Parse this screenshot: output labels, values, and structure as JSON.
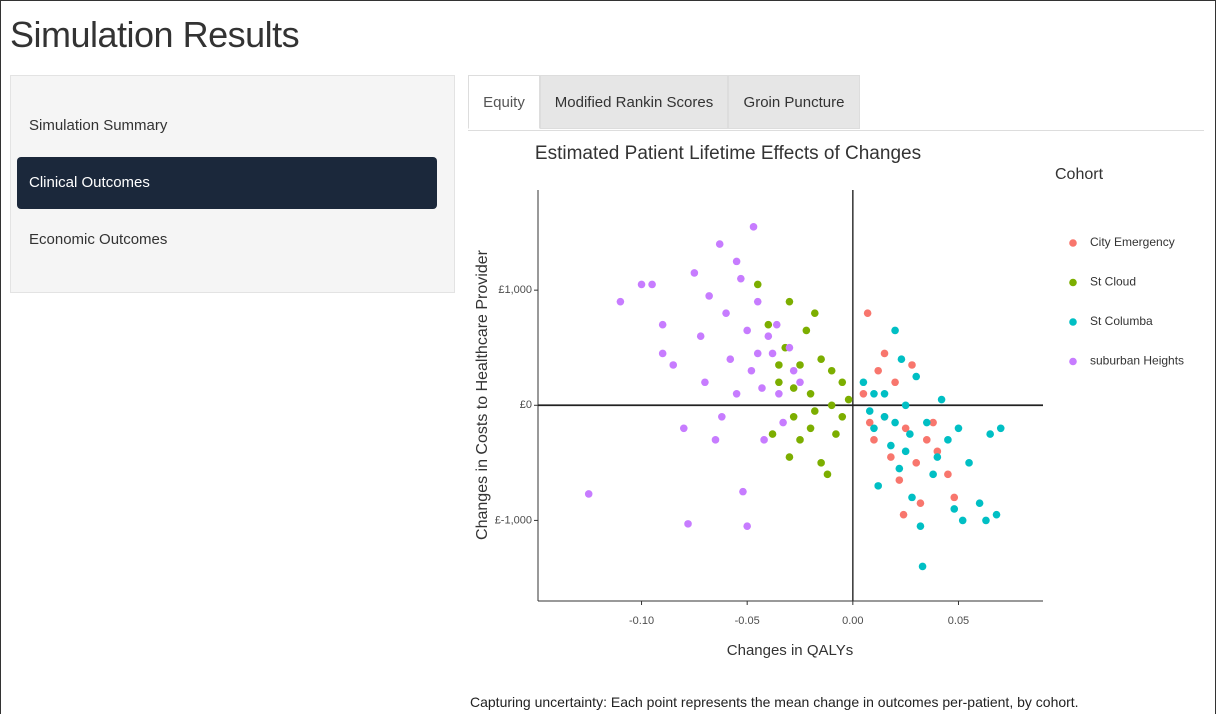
{
  "header": {
    "title": "Simulation Results"
  },
  "sidebar": {
    "items": [
      "Simulation Summary",
      "Clinical Outcomes",
      "Economic Outcomes"
    ],
    "active": 1
  },
  "tabs": {
    "items": [
      "Equity",
      "Modified Rankin Scores",
      "Groin Puncture"
    ],
    "active": 0
  },
  "caption": "Capturing uncertainty: Each point represents the mean change in outcomes per-patient, by cohort.",
  "chart_data": {
    "type": "scatter",
    "title": "Estimated Patient Lifetime Effects of Changes",
    "x_label": "Changes in QALYs",
    "y_label": "Changes in Costs to Healthcare Provider",
    "legend_title": "Cohort",
    "legend": "right",
    "xlim": [
      -0.149,
      0.09
    ],
    "ylim": [
      -1700,
      1870
    ],
    "xticks": [
      {
        "value": -0.1,
        "label": "-0.10"
      },
      -0.05,
      {
        "value": 0,
        "label": "0.00"
      },
      0.05
    ],
    "yticks": [
      {
        "value": -1000,
        "label": "£-1,000"
      },
      {
        "value": 0,
        "label": "£0"
      },
      {
        "value": 1000,
        "label": "£1,000"
      }
    ],
    "series": [
      {
        "name": "City Emergency",
        "color": "#f8766d",
        "x": [
          0.007,
          0.005,
          0.01,
          0.012,
          0.015,
          0.018,
          0.02,
          0.022,
          0.025,
          0.028,
          0.03,
          0.032,
          0.035,
          0.04,
          0.045,
          0.048,
          0.024,
          0.015,
          0.008,
          0.038
        ],
        "values": [
          800,
          100,
          -300,
          300,
          -100,
          -450,
          200,
          -650,
          -200,
          350,
          -500,
          -850,
          -300,
          -400,
          -600,
          -800,
          -950,
          450,
          -150,
          -150
        ]
      },
      {
        "name": "St Cloud",
        "color": "#7cae00",
        "x": [
          -0.045,
          -0.04,
          -0.038,
          -0.035,
          -0.032,
          -0.03,
          -0.03,
          -0.028,
          -0.025,
          -0.025,
          -0.022,
          -0.02,
          -0.02,
          -0.018,
          -0.015,
          -0.015,
          -0.012,
          -0.01,
          -0.01,
          -0.008,
          -0.005,
          -0.005,
          -0.002,
          -0.035,
          -0.018,
          -0.028
        ],
        "values": [
          1050,
          700,
          -250,
          200,
          500,
          900,
          -450,
          -100,
          350,
          -300,
          650,
          100,
          -200,
          800,
          400,
          -500,
          -600,
          300,
          0,
          -250,
          200,
          -100,
          50,
          350,
          -50,
          150
        ]
      },
      {
        "name": "St Columba",
        "color": "#00bfc4",
        "x": [
          0.005,
          0.008,
          0.01,
          0.012,
          0.015,
          0.018,
          0.02,
          0.022,
          0.023,
          0.025,
          0.027,
          0.028,
          0.03,
          0.032,
          0.033,
          0.035,
          0.038,
          0.04,
          0.042,
          0.045,
          0.048,
          0.05,
          0.052,
          0.055,
          0.06,
          0.063,
          0.065,
          0.068,
          0.07,
          0.015,
          0.02,
          0.025,
          0.01
        ],
        "values": [
          200,
          -50,
          -200,
          -700,
          100,
          -350,
          650,
          -550,
          400,
          0,
          -250,
          -800,
          250,
          -1050,
          -1400,
          -150,
          -600,
          -450,
          50,
          -300,
          -900,
          -200,
          -1000,
          -500,
          -850,
          -1000,
          -250,
          -950,
          -200,
          -100,
          -150,
          -400,
          100
        ]
      },
      {
        "name": "suburban Heights",
        "color": "#c77cff",
        "x": [
          -0.125,
          -0.11,
          -0.1,
          -0.095,
          -0.09,
          -0.09,
          -0.08,
          -0.078,
          -0.075,
          -0.072,
          -0.07,
          -0.068,
          -0.065,
          -0.063,
          -0.06,
          -0.058,
          -0.055,
          -0.053,
          -0.052,
          -0.05,
          -0.05,
          -0.048,
          -0.047,
          -0.045,
          -0.043,
          -0.042,
          -0.04,
          -0.038,
          -0.036,
          -0.035,
          -0.033,
          -0.03,
          -0.028,
          -0.025,
          -0.085,
          -0.062,
          -0.055,
          -0.045
        ],
        "values": [
          -770,
          900,
          1050,
          1050,
          700,
          450,
          -200,
          -1030,
          1150,
          600,
          200,
          950,
          -300,
          1400,
          800,
          400,
          1250,
          1100,
          -750,
          650,
          -1050,
          300,
          1550,
          900,
          150,
          -300,
          600,
          450,
          700,
          100,
          -150,
          500,
          300,
          200,
          350,
          -100,
          100,
          450
        ]
      }
    ]
  }
}
